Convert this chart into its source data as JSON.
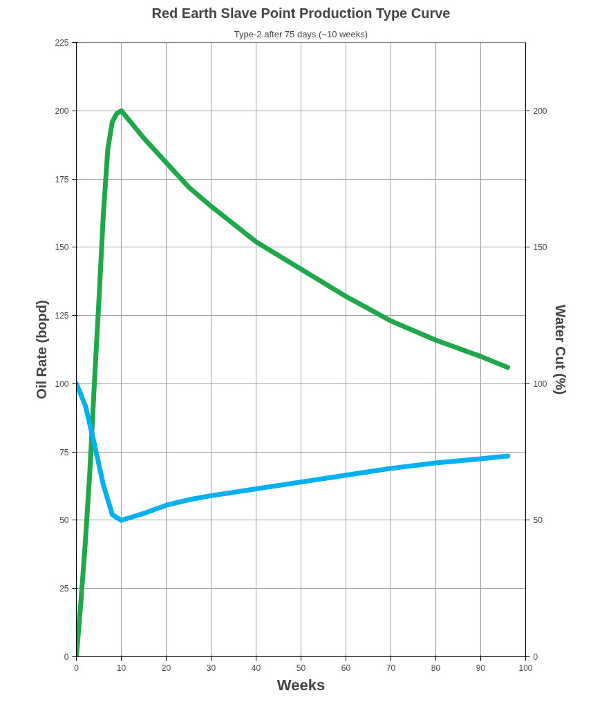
{
  "chart_data": {
    "type": "line",
    "title": "Red Earth Slave Point Production Type Curve",
    "subtitle": "Type-2 after 75 days (~10 weeks)",
    "xlabel": "Weeks",
    "ylabel": "Oil Rate (bopd)",
    "y2label": "Water Cut (%)",
    "xlim": [
      0,
      100
    ],
    "xticks": [
      0,
      10,
      20,
      30,
      40,
      50,
      60,
      70,
      80,
      90,
      100
    ],
    "ylim": [
      0,
      225
    ],
    "yticks": [
      0,
      25,
      50,
      75,
      100,
      125,
      150,
      175,
      200,
      225
    ],
    "y2lim": [
      0,
      225
    ],
    "y2ticks": [
      0,
      50,
      100,
      150,
      200
    ],
    "grid": true,
    "marker": "none",
    "line_style": "solid",
    "series": [
      {
        "color": "#1fa84a",
        "x": [
          0,
          1,
          2,
          3,
          4,
          5,
          6,
          7,
          8,
          9,
          10,
          12,
          15,
          20,
          25,
          30,
          40,
          50,
          60,
          70,
          80,
          90,
          96
        ],
        "values": [
          0,
          20,
          42,
          68,
          100,
          130,
          162,
          186,
          196,
          199,
          200,
          196,
          190,
          181,
          172,
          165,
          152,
          142,
          132,
          123,
          116,
          110,
          106
        ]
      },
      {
        "color": "#00b0f0",
        "x": [
          0,
          2,
          4,
          6,
          8,
          10,
          12,
          15,
          20,
          25,
          30,
          40,
          50,
          60,
          70,
          80,
          90,
          96
        ],
        "values": [
          100,
          92,
          78,
          63,
          52,
          50,
          51,
          52.5,
          55.5,
          57.5,
          59,
          61.5,
          64,
          66.5,
          69,
          71,
          72.5,
          73.5
        ]
      }
    ]
  }
}
